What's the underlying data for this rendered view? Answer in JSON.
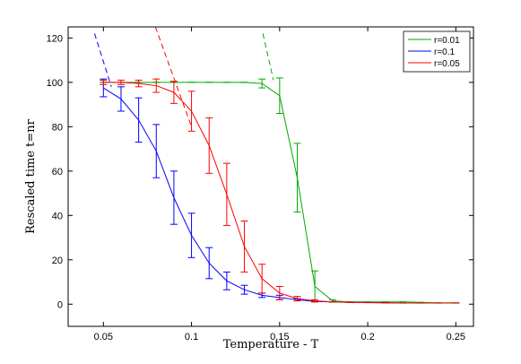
{
  "chart_data": {
    "type": "line",
    "xlabel": "Temperature - T",
    "ylabel": "Rescaled time t=nr",
    "xlim": [
      0.03,
      0.26
    ],
    "ylim": [
      -10,
      125
    ],
    "x_ticks": [
      0.05,
      0.1,
      0.15,
      0.2,
      0.25
    ],
    "x_tick_labels": [
      "0.05",
      "0.1",
      "0.15",
      "0.2",
      "0.25"
    ],
    "y_ticks": [
      0,
      20,
      40,
      60,
      80,
      100,
      120
    ],
    "y_tick_labels": [
      "0",
      "20",
      "40",
      "60",
      "80",
      "100",
      "120"
    ],
    "grid": false,
    "legend_position": "top-right",
    "series": [
      {
        "name": "r=0.01",
        "color": "#00aa00",
        "x": [
          0.05,
          0.06,
          0.07,
          0.08,
          0.09,
          0.1,
          0.11,
          0.12,
          0.13,
          0.14,
          0.15,
          0.16,
          0.17,
          0.18,
          0.19,
          0.2,
          0.21,
          0.22,
          0.23,
          0.24,
          0.25
        ],
        "y": [
          100,
          100,
          100,
          100,
          100,
          100,
          100,
          100,
          100,
          99.5,
          94,
          57,
          8,
          1.5,
          1,
          1,
          1,
          1,
          0.8,
          0.6,
          0.6
        ],
        "err": [
          0,
          0,
          0,
          0,
          0,
          0,
          0,
          0,
          0,
          2,
          8,
          15.5,
          7,
          0.5,
          0,
          0,
          0,
          0,
          0,
          0,
          0
        ],
        "dashed": {
          "x": [
            0.1405,
            0.1465
          ],
          "y": [
            122,
            101
          ]
        }
      },
      {
        "name": "r=0.1",
        "color": "#0000ff",
        "x": [
          0.05,
          0.06,
          0.07,
          0.08,
          0.09,
          0.1,
          0.11,
          0.12,
          0.13,
          0.14,
          0.15,
          0.16,
          0.17,
          0.18,
          0.19,
          0.2,
          0.21,
          0.22,
          0.23,
          0.24,
          0.25
        ],
        "y": [
          97.5,
          92.5,
          83,
          69,
          48,
          31,
          18.5,
          10.5,
          6.5,
          4,
          3,
          2,
          1.2,
          1,
          0.8,
          0.7,
          0.6,
          0.5,
          0.5,
          0.5,
          0.5
        ],
        "err": [
          4,
          5.5,
          10,
          12,
          12,
          10,
          7,
          4,
          2,
          1,
          1,
          0.5,
          0,
          0,
          0,
          0,
          0,
          0,
          0,
          0,
          0
        ],
        "dashed": {
          "x": [
            0.045,
            0.0545
          ],
          "y": [
            122,
            98
          ]
        }
      },
      {
        "name": "r=0.05",
        "color": "#ff0000",
        "x": [
          0.05,
          0.06,
          0.07,
          0.08,
          0.09,
          0.1,
          0.11,
          0.12,
          0.13,
          0.14,
          0.15,
          0.16,
          0.17,
          0.18,
          0.19,
          0.2,
          0.21,
          0.22,
          0.23,
          0.24,
          0.25
        ],
        "y": [
          100,
          100,
          99.5,
          98.5,
          95.5,
          87,
          71.5,
          49.5,
          26,
          11.5,
          5,
          2.5,
          1.5,
          1,
          0.8,
          0.7,
          0.6,
          0.5,
          0.5,
          0.5,
          0.5
        ],
        "err": [
          1,
          1,
          1.5,
          3,
          5,
          9,
          12.5,
          14,
          11.5,
          6.5,
          3,
          1,
          0.5,
          0,
          0,
          0,
          0,
          0,
          0,
          0,
          0
        ],
        "dashed": {
          "x": [
            0.0795,
            0.1
          ],
          "y": [
            125,
            80
          ]
        }
      }
    ]
  }
}
